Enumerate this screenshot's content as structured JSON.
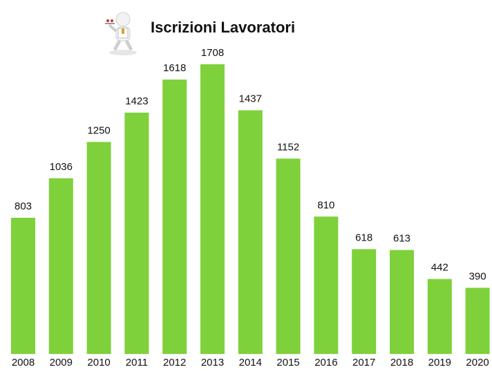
{
  "chart_data": {
    "type": "bar",
    "title": "Iscrizioni Lavoratori",
    "categories": [
      "2008",
      "2009",
      "2010",
      "2011",
      "2012",
      "2013",
      "2014",
      "2015",
      "2016",
      "2017",
      "2018",
      "2019",
      "2020"
    ],
    "values": [
      803,
      1036,
      1250,
      1423,
      1618,
      1708,
      1437,
      1152,
      810,
      618,
      613,
      442,
      390
    ],
    "color": "#7ed13a"
  }
}
